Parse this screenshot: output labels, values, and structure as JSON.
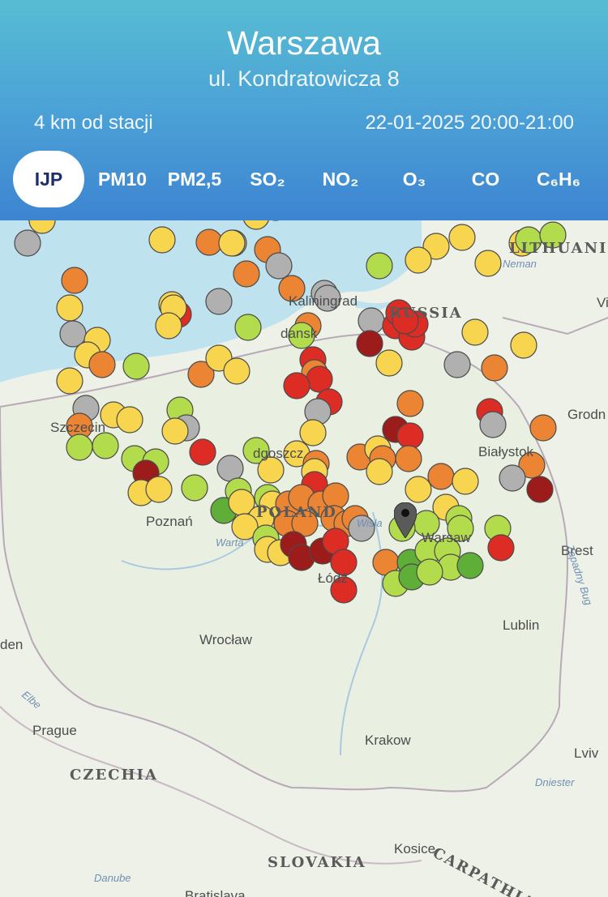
{
  "header": {
    "city": "Warszawa",
    "street": "ul. Kondratowicza 8",
    "distance": "4 km od stacji",
    "datetime": "22-01-2025 20:00-21:00",
    "gradient_colors": [
      "#57bdd3",
      "#3d84d1"
    ]
  },
  "tabs": [
    {
      "label": "IJP",
      "active": true
    },
    {
      "label": "PM10",
      "active": false
    },
    {
      "label": "PM2,5",
      "active": false
    },
    {
      "label": "SO₂",
      "active": false
    },
    {
      "label": "NO₂",
      "active": false
    },
    {
      "label": "O₃",
      "active": false
    },
    {
      "label": "CO",
      "active": false
    },
    {
      "label": "C₆H₆",
      "active": false
    }
  ],
  "map": {
    "labels": {
      "lithuania": "LITHUANI",
      "neman": "Neman",
      "kaliningrad": "Kaliningrad",
      "russia": "RUSSIA",
      "gdansk": "dansk",
      "vi": "Vi",
      "grodno": "Grodn",
      "szczecin": "Szczecin",
      "bydgoszcz": "dgoszcz",
      "bialystok": "Białystok",
      "poznan": "Poznań",
      "poland": "POLAND",
      "wisla": "Wisła",
      "warsaw": "Warsaw",
      "warta": "Warta",
      "brest": "Brest",
      "lodz": "Łódź",
      "wroclaw": "Wrocław",
      "lublin": "Lublin",
      "dresden": "den",
      "zapadny_bug": "Zapadny Bug",
      "elbe": "Elbe",
      "prague": "Prague",
      "czechia": "CZECHIA",
      "krakow": "Krakow",
      "lviv": "Lviv",
      "dniester": "Dniester",
      "kosice": "Kosice",
      "carpathian": "CARPATHIAN",
      "slovakia": "SLOVAKIA",
      "danube": "Danube",
      "bratislava": "Bratislava"
    },
    "colors": {
      "very_good": "#5fae38",
      "good": "#b3dc4c",
      "moderate": "#f8d54f",
      "sufficient": "#eb8433",
      "bad": "#dc2c24",
      "very_bad": "#9c1b1b",
      "no_data": "#b0b0b0",
      "sea": "#bfe2ef",
      "land": "#eef1e8"
    },
    "pin_icon": "map-pin-icon"
  }
}
